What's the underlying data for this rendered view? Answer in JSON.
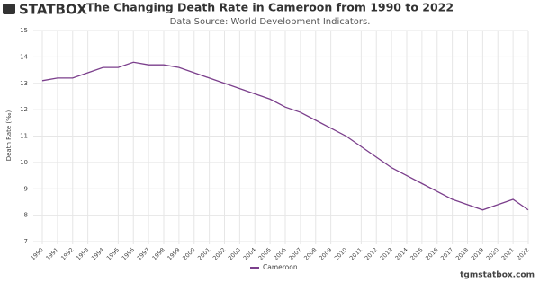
{
  "brand": "STATBOX",
  "footer": "tgmstatbox.com",
  "chart_data": {
    "type": "line",
    "title": "The Changing Death Rate in Cameroon from 1990 to 2022",
    "subtitle": "Data Source: World Development Indicators.",
    "y_label": "Death Rate (‰)",
    "x": [
      1990,
      1991,
      1992,
      1993,
      1994,
      1995,
      1996,
      1997,
      1998,
      1999,
      2000,
      2001,
      2002,
      2003,
      2004,
      2005,
      2006,
      2007,
      2008,
      2009,
      2010,
      2011,
      2012,
      2013,
      2014,
      2015,
      2016,
      2017,
      2018,
      2019,
      2020,
      2021,
      2022
    ],
    "xlim": [
      1990,
      2022
    ],
    "series": [
      {
        "name": "Cameroon",
        "color": "#7b3f8c",
        "values": [
          13.1,
          13.2,
          13.2,
          13.4,
          13.6,
          13.6,
          13.8,
          13.7,
          13.7,
          13.6,
          13.4,
          13.2,
          13.0,
          12.8,
          12.6,
          12.4,
          12.1,
          11.9,
          11.6,
          11.3,
          11.0,
          10.6,
          10.2,
          9.8,
          9.5,
          9.2,
          8.9,
          8.6,
          8.4,
          8.2,
          8.4,
          8.6,
          8.2
        ]
      }
    ],
    "ylim": [
      7,
      15
    ],
    "yticks": [
      7,
      8,
      9,
      10,
      11,
      12,
      13,
      14,
      15
    ],
    "grid": true
  }
}
